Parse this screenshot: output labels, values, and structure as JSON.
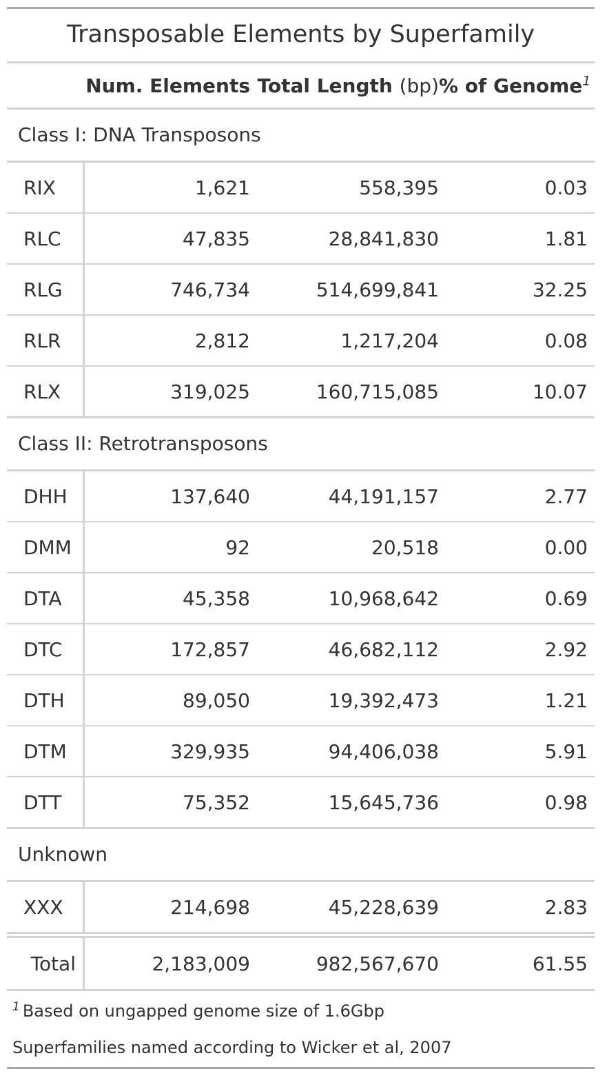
{
  "title": "Transposable Elements by Superfamily",
  "columns": {
    "num_elements": "Num. Elements",
    "total_length": "Total Length",
    "total_length_unit": "(bp)",
    "pct_genome": "% of Genome",
    "pct_genome_footnote_mark": "1"
  },
  "groups": [
    {
      "label": "Class I: DNA Transposons",
      "rows": [
        {
          "name": "RIX",
          "num": "1,621",
          "length": "558,395",
          "pct": "0.03"
        },
        {
          "name": "RLC",
          "num": "47,835",
          "length": "28,841,830",
          "pct": "1.81"
        },
        {
          "name": "RLG",
          "num": "746,734",
          "length": "514,699,841",
          "pct": "32.25"
        },
        {
          "name": "RLR",
          "num": "2,812",
          "length": "1,217,204",
          "pct": "0.08"
        },
        {
          "name": "RLX",
          "num": "319,025",
          "length": "160,715,085",
          "pct": "10.07"
        }
      ]
    },
    {
      "label": "Class II: Retrotransposons",
      "rows": [
        {
          "name": "DHH",
          "num": "137,640",
          "length": "44,191,157",
          "pct": "2.77"
        },
        {
          "name": "DMM",
          "num": "92",
          "length": "20,518",
          "pct": "0.00"
        },
        {
          "name": "DTA",
          "num": "45,358",
          "length": "10,968,642",
          "pct": "0.69"
        },
        {
          "name": "DTC",
          "num": "172,857",
          "length": "46,682,112",
          "pct": "2.92"
        },
        {
          "name": "DTH",
          "num": "89,050",
          "length": "19,392,473",
          "pct": "1.21"
        },
        {
          "name": "DTM",
          "num": "329,935",
          "length": "94,406,038",
          "pct": "5.91"
        },
        {
          "name": "DTT",
          "num": "75,352",
          "length": "15,645,736",
          "pct": "0.98"
        }
      ]
    },
    {
      "label": "Unknown",
      "rows": [
        {
          "name": "XXX",
          "num": "214,698",
          "length": "45,228,639",
          "pct": "2.83"
        }
      ]
    }
  ],
  "total": {
    "name": "Total",
    "num": "2,183,009",
    "length": "982,567,670",
    "pct": "61.55"
  },
  "footnote": {
    "mark": "1",
    "text": "Based on ungapped genome size of 1.6Gbp"
  },
  "source_note": "Superfamilies named according to Wicker et al, 2007"
}
